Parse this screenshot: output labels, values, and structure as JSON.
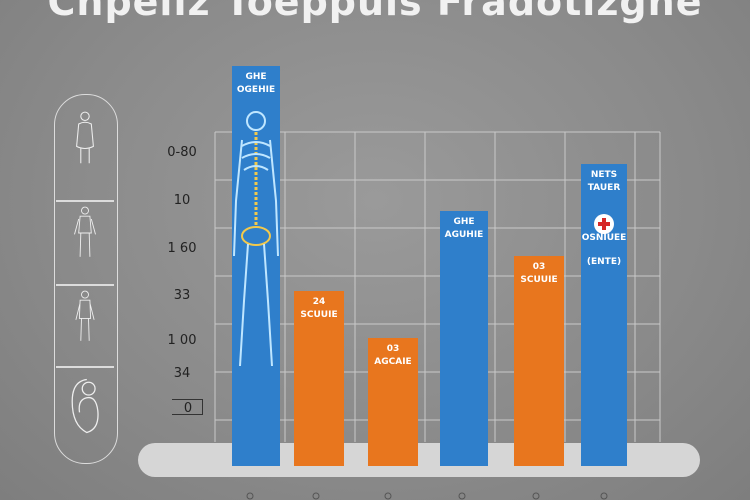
{
  "chart_data": {
    "type": "bar",
    "title": "Cnpeliz Toeppuls Fradotizgne",
    "ytick_labels": [
      "0-80",
      "10",
      "1 60",
      "33",
      "1 00",
      "34",
      "0"
    ],
    "bars": [
      {
        "value": 400,
        "color": "#2f7fcb",
        "line1": "GHE",
        "line2": "OGEHIE",
        "illustration": "skeleton"
      },
      {
        "value": 175,
        "color": "#e8761e",
        "line1": "24",
        "line2": "SCUUIE"
      },
      {
        "value": 128,
        "color": "#e8761e",
        "line1": "03",
        "line2": "AGCAIE"
      },
      {
        "value": 255,
        "color": "#2f7fcb",
        "line1": "GHE",
        "line2": "AGUHIE"
      },
      {
        "value": 210,
        "color": "#e8761e",
        "line1": "03",
        "line2": "SCUUIE"
      },
      {
        "value": 302,
        "color": "#2f7fcb",
        "line1": "NETS",
        "line2": "TAUER",
        "line3": "OSNIUEE",
        "line4": "(ENTE)",
        "icon": "red-cross-icon"
      }
    ],
    "ylim": [
      0,
      430
    ],
    "grid": true,
    "colors": {
      "blue": "#2f7fcb",
      "orange": "#e8761e",
      "background": "#8c8c8c"
    }
  },
  "icons": [
    "body-figure-icon-1",
    "body-figure-icon-2",
    "body-figure-icon-3",
    "fetus-icon"
  ]
}
